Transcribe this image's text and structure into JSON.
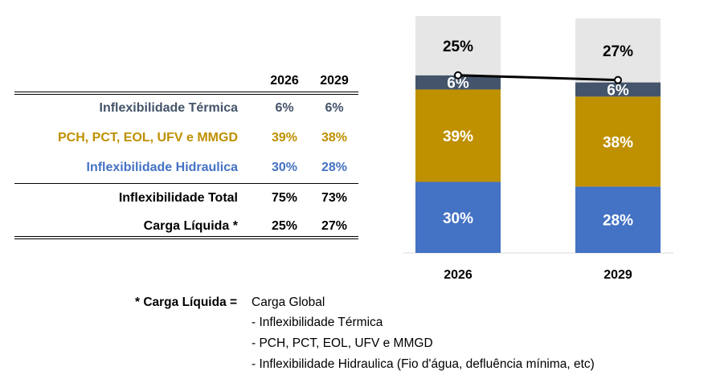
{
  "table": {
    "years": [
      "2026",
      "2029"
    ],
    "rows": [
      {
        "label": "Inflexibilidade Térmica",
        "v2026": "6%",
        "v2029": "6%",
        "color": "#44546A"
      },
      {
        "label": "PCH, PCT, EOL, UFV e MMGD",
        "v2026": "39%",
        "v2029": "38%",
        "color": "#BF9000"
      },
      {
        "label": "Inflexibilidade Hidraulica",
        "v2026": "30%",
        "v2029": "28%",
        "color": "#4472C4"
      },
      {
        "label": "Inflexibilidade Total",
        "v2026": "75%",
        "v2029": "73%",
        "color": "#000000"
      },
      {
        "label": "Carga Líquida *",
        "v2026": "25%",
        "v2029": "27%",
        "color": "#000000"
      }
    ]
  },
  "chart_data": {
    "type": "bar",
    "stacked": true,
    "categories": [
      "2026",
      "2029"
    ],
    "series": [
      {
        "values": [
          30,
          28
        ],
        "labels": [
          "30%",
          "28%"
        ],
        "color": "#4472C4"
      },
      {
        "values": [
          39,
          38
        ],
        "labels": [
          "39%",
          "38%"
        ],
        "color": "#BF9000"
      },
      {
        "values": [
          6,
          6
        ],
        "labels": [
          "6%",
          "6%"
        ],
        "color": "#44546A"
      },
      {
        "values": [
          25,
          27
        ],
        "labels": [
          "25%",
          "27%"
        ],
        "color": "#E7E6E6"
      }
    ],
    "line": {
      "values": [
        75,
        73
      ],
      "color": "#000000",
      "markers": true
    },
    "ylim": [
      0,
      100
    ],
    "grid": false,
    "legend": "none"
  },
  "note": {
    "term": "* Carga Líquida =",
    "lines": [
      "Carga Global",
      "- Inflexibilidade Térmica",
      "- PCH, PCT, EOL, UFV e MMGD",
      "- Inflexibilidade Hidraulica (Fio d'água, defluência mínima, etc)"
    ]
  }
}
